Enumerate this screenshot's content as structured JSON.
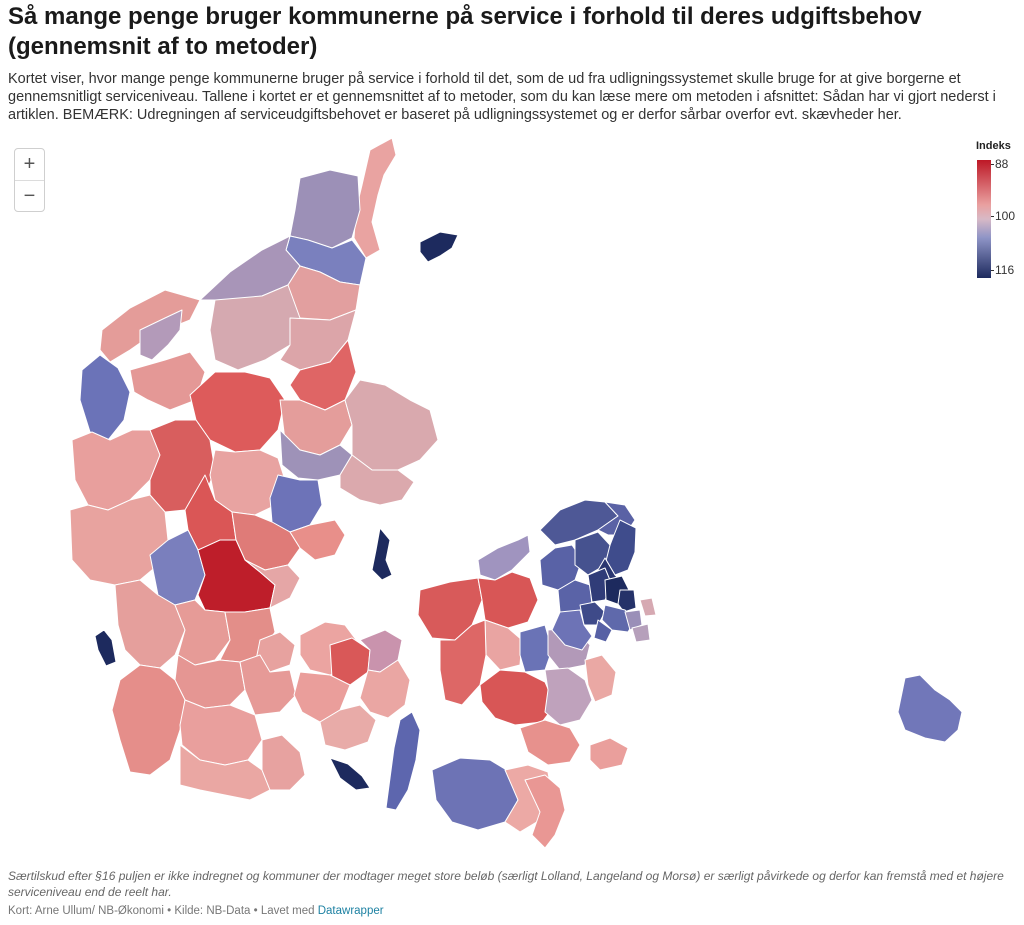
{
  "header": {
    "title": "Så mange penge bruger kommunerne på service i forhold til deres udgiftsbehov (gennemsnit af to metoder)",
    "description": "Kortet viser,  hvor mange penge kommunerne bruger på service i forhold til det, som de ud fra udligningssystemet skulle bruge for at give borgerne et gennemsnitligt serviceniveau. Tallene i kortet er et gennemsnittet af to metoder, som du kan læse mere om metoden i afsnittet: Sådan har vi gjort nederst i artiklen. BEMÆRK: Udregningen af serviceudgiftsbehovet er baseret på udligningssystemet og er derfor sårbar overfor evt. skævheder her."
  },
  "zoom": {
    "in_label": "+",
    "out_label": "−"
  },
  "legend": {
    "title": "Indeks",
    "ticks": [
      "88",
      "100",
      "116"
    ],
    "colors": {
      "low": "#bd1826",
      "mid": "#d8b9c6",
      "high": "#1d2a5e"
    }
  },
  "footer": {
    "notes": "Særtilskud efter §16 puljen er ikke indregnet og kommuner der modtager meget store beløb (særligt Lolland, Langeland og Morsø) er særligt påvirkede og derfor kan fremstå med et højere serviceniveau end de reelt har.",
    "credit_prefix": "Kort: Arne Ullum/ NB-Økonomi • Kilde: NB-Data • Lavet med ",
    "credit_link": "Datawrapper"
  }
}
